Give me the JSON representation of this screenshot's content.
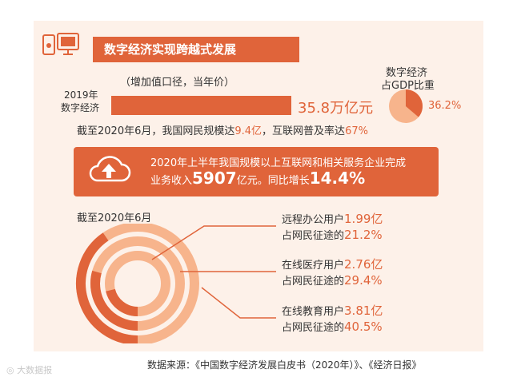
{
  "colors": {
    "accent": "#e0643a",
    "light": "#f7b48c",
    "background": "#fdf1e9"
  },
  "header": {
    "icon": "digital-devices-icon",
    "title": "数字经济实现跨越式发展"
  },
  "economy": {
    "subtitle": "（增加值口径，当年价）",
    "row_label_year": "2019年",
    "row_label_name": "数字经济",
    "value_text": "35.8万亿元",
    "gdp_label_line1": "数字经济",
    "gdp_label_line2": "占GDP比重",
    "gdp_value_text": "36.2%"
  },
  "netizens": {
    "prefix": "截至2020年6月，我国网民规模达",
    "users": "9.4亿",
    "middle": "，互联网普及率达",
    "rate": "67%"
  },
  "revenue_box": {
    "icon": "cloud-upload-icon",
    "line1": "2020年上半年我国规模以上互联网和相关服务企业完成",
    "line2_prefix": "业务收入",
    "amount_num": "5907",
    "amount_unit": "亿元。",
    "growth_prefix": "同比增长",
    "growth_value": "14.4%"
  },
  "rings_section": {
    "date_label": "截至2020年6月",
    "items": [
      {
        "label": "远程办公用户",
        "users": "1.99亿",
        "share_prefix": "占网民征途的",
        "share": "21.2%"
      },
      {
        "label": "在线医疗用户",
        "users": "2.76亿",
        "share_prefix": "占网民征途的",
        "share": "29.4%"
      },
      {
        "label": "在线教育用户",
        "users": "3.81亿",
        "share_prefix": "占网民征途的",
        "share": "40.5%"
      }
    ]
  },
  "source": "数据来源：《中国数字经济发展白皮书（2020年）》、《经济日报》",
  "watermark": "大数据报",
  "chart_data": [
    {
      "type": "pie",
      "title": "数字经济占GDP比重",
      "values": [
        36.2,
        63.8
      ],
      "unit": "%"
    },
    {
      "type": "pie",
      "title": "截至2020年6月",
      "categories": [
        "远程办公用户",
        "在线医疗用户",
        "在线教育用户"
      ],
      "users_100m": [
        1.99,
        2.76,
        3.81
      ],
      "values": [
        21.2,
        29.4,
        40.5
      ],
      "unit": "%"
    }
  ]
}
